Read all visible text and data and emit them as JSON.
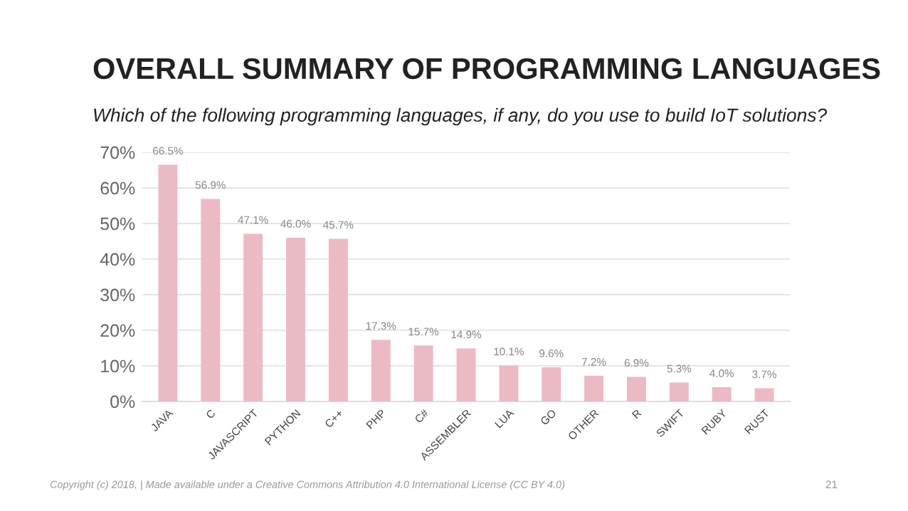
{
  "chart_data": {
    "type": "bar",
    "title": "OVERALL SUMMARY OF PROGRAMMING LANGUAGES",
    "subtitle": "Which of the following programming languages, if any, do you use to build IoT solutions?",
    "categories": [
      "JAVA",
      "C",
      "JAVASCRIPT",
      "PYTHON",
      "C++",
      "PHP",
      "C#",
      "ASSEMBLER",
      "LUA",
      "GO",
      "OTHER",
      "R",
      "SWIFT",
      "RUBY",
      "RUST"
    ],
    "values": [
      66.5,
      56.9,
      47.1,
      46.0,
      45.7,
      17.3,
      15.7,
      14.9,
      10.1,
      9.6,
      7.2,
      6.9,
      5.3,
      4.0,
      3.7
    ],
    "value_labels": [
      "66.5%",
      "56.9%",
      "47.1%",
      "46.0%",
      "45.7%",
      "17.3%",
      "15.7%",
      "14.9%",
      "10.1%",
      "9.6%",
      "7.2%",
      "6.9%",
      "5.3%",
      "4.0%",
      "3.7%"
    ],
    "color": "#ecbac5",
    "ylim": [
      0,
      70
    ],
    "yticks": [
      {
        "value": 0,
        "label": "0%"
      },
      {
        "value": 10,
        "label": "10%"
      },
      {
        "value": 20,
        "label": "20%"
      },
      {
        "value": 30,
        "label": "30%"
      },
      {
        "value": 40,
        "label": "40%"
      },
      {
        "value": 50,
        "label": "50%"
      },
      {
        "value": 60,
        "label": "60%"
      },
      {
        "value": 70,
        "label": "70%"
      }
    ],
    "grid": "y",
    "legend": false,
    "annotations": [
      "Copyright (c) 2018, | Made available under a Creative Commons Attribution 4.0 International License (CC BY 4.0)",
      "21"
    ]
  }
}
